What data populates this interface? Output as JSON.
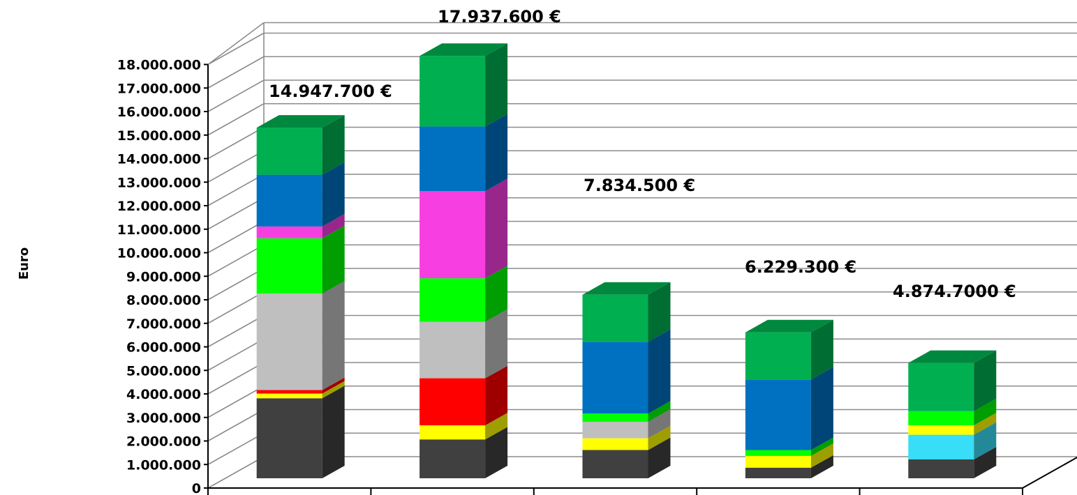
{
  "chart_data": {
    "type": "bar",
    "stacked": true,
    "three_d": true,
    "ylabel": "Euro",
    "ylim": [
      0,
      18000000
    ],
    "ytick_step": 1000000,
    "ytick_labels": [
      "0",
      "1.000.000",
      "2.000.000",
      "3.000.000",
      "4.000.000",
      "5.000.000",
      "6.000.000",
      "7.000.000",
      "8.000.000",
      "9.000.000",
      "10.000.000",
      "11.000.000",
      "12.000.000",
      "13.000.000",
      "14.000.000",
      "15.000.000",
      "16.000.000",
      "17.000.000",
      "18.000.000"
    ],
    "grid": true,
    "legend": "none",
    "bars": [
      {
        "total_label": "14.947.700 €",
        "segments": [
          {
            "value": 3400000,
            "color": "#404040"
          },
          {
            "value": 200000,
            "color": "#ffff00"
          },
          {
            "value": 150000,
            "color": "#ff0000"
          },
          {
            "value": 4100000,
            "color": "#bfbfbf"
          },
          {
            "value": 2350000,
            "color": "#00ff00"
          },
          {
            "value": 500000,
            "color": "#f73ee0"
          },
          {
            "value": 2200000,
            "color": "#0070c0"
          },
          {
            "value": 2000000,
            "color": "#00b050"
          }
        ]
      },
      {
        "total_label": "17.937.600 €",
        "segments": [
          {
            "value": 1650000,
            "color": "#404040"
          },
          {
            "value": 600000,
            "color": "#ffff00"
          },
          {
            "value": 2000000,
            "color": "#ff0000"
          },
          {
            "value": 2400000,
            "color": "#bfbfbf"
          },
          {
            "value": 1850000,
            "color": "#00ff00"
          },
          {
            "value": 3700000,
            "color": "#f73ee0"
          },
          {
            "value": 2750000,
            "color": "#0070c0"
          },
          {
            "value": 3000000,
            "color": "#00b050"
          }
        ]
      },
      {
        "total_label": "7.834.500 €",
        "segments": [
          {
            "value": 1200000,
            "color": "#404040"
          },
          {
            "value": 500000,
            "color": "#ffff00"
          },
          {
            "value": 700000,
            "color": "#bfbfbf"
          },
          {
            "value": 350000,
            "color": "#00ff00"
          },
          {
            "value": 3050000,
            "color": "#0070c0"
          },
          {
            "value": 2000000,
            "color": "#00b050"
          }
        ]
      },
      {
        "total_label": "6.229.300 €",
        "segments": [
          {
            "value": 450000,
            "color": "#404040"
          },
          {
            "value": 500000,
            "color": "#ffff00"
          },
          {
            "value": 250000,
            "color": "#00ff00"
          },
          {
            "value": 3000000,
            "color": "#0070c0"
          },
          {
            "value": 2000000,
            "color": "#00b050"
          }
        ]
      },
      {
        "total_label": "4.874.7000 €",
        "segments": [
          {
            "value": 800000,
            "color": "#404040"
          },
          {
            "value": 1050000,
            "color": "#38ddf7"
          },
          {
            "value": 400000,
            "color": "#ffff00"
          },
          {
            "value": 600000,
            "color": "#00ff00"
          },
          {
            "value": 2050000,
            "color": "#00b050"
          }
        ]
      }
    ]
  }
}
